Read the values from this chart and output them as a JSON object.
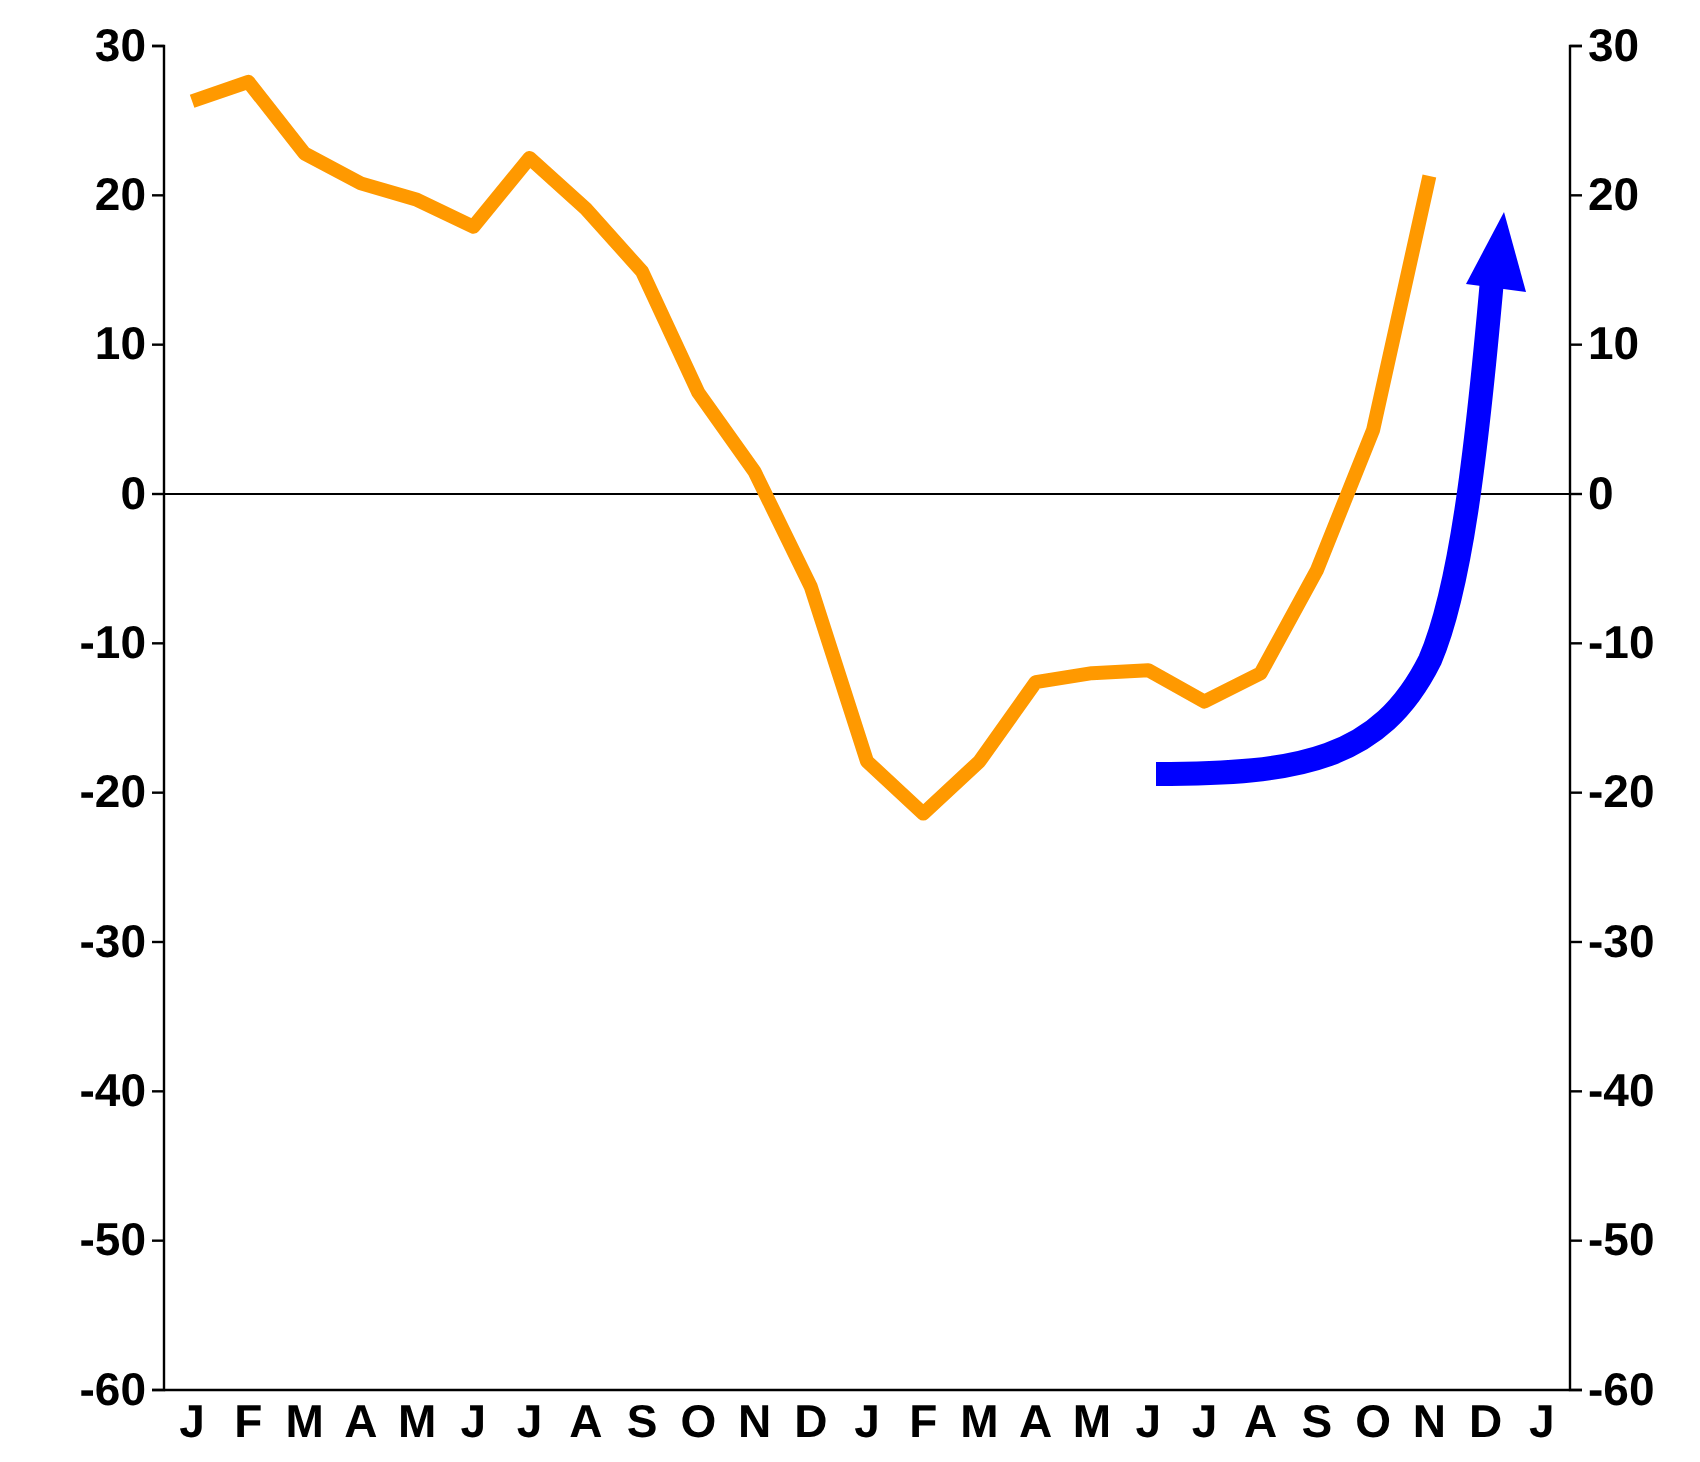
{
  "chart_data": {
    "type": "line",
    "categories": [
      "J",
      "F",
      "M",
      "A",
      "M",
      "J",
      "J",
      "A",
      "S",
      "O",
      "N",
      "D",
      "J",
      "F",
      "M",
      "A",
      "M",
      "J",
      "J",
      "A",
      "S",
      "O",
      "N",
      "D",
      "J"
    ],
    "series": [
      {
        "color": "#ff9900",
        "values": [
          26.3,
          27.6,
          22.8,
          20.8,
          19.7,
          17.9,
          22.5,
          19.1,
          14.9,
          6.8,
          1.5,
          -6.2,
          -17.9,
          -21.4,
          -17.9,
          -12.6,
          -12.0,
          -11.8,
          -13.9,
          -12.0,
          -5.1,
          4.3,
          21.3,
          null,
          null
        ]
      }
    ],
    "ylim": [
      -60,
      30
    ],
    "yticks": [
      -60,
      -50,
      -40,
      -30,
      -20,
      -10,
      0,
      10,
      20,
      30
    ],
    "y2lim": [
      -60,
      30
    ],
    "y2ticks": [
      -60,
      -50,
      -40,
      -30,
      -20,
      -10,
      0,
      10,
      20,
      30
    ],
    "ref_lines": [
      {
        "axis": "y",
        "value": 0,
        "color": "#000000"
      }
    ],
    "grid": false,
    "marker": "none",
    "line_style": "solid"
  }
}
